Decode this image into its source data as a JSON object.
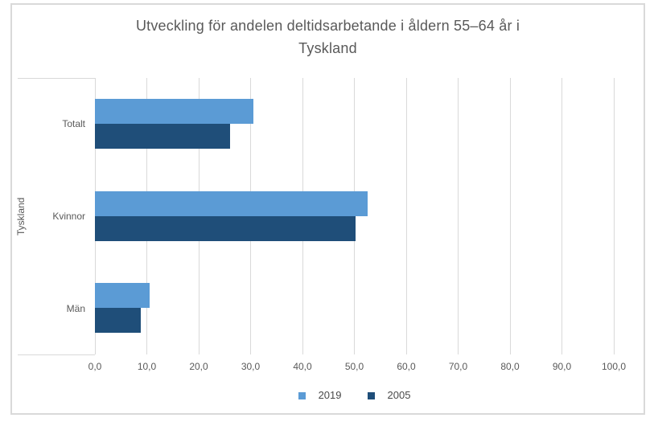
{
  "chart_data": {
    "type": "bar",
    "orientation": "horizontal",
    "title": "Utveckling för andelen deltidsarbetande i åldern 55–64 år i Tyskland",
    "title_lines": [
      "Utveckling för andelen deltidsarbetande i åldern 55–64 år i",
      "Tyskland"
    ],
    "group_label": "Tyskland",
    "categories": [
      "Totalt",
      "Kvinnor",
      "Män"
    ],
    "series": [
      {
        "name": "2019",
        "color": "#5b9bd5",
        "values": [
          30.5,
          52.6,
          10.5
        ]
      },
      {
        "name": "2005",
        "color": "#1f4e79",
        "values": [
          26.1,
          50.3,
          8.9
        ]
      }
    ],
    "x_axis": {
      "min": 0,
      "max": 100,
      "tick_step": 10,
      "tick_labels": [
        "0,0",
        "10,0",
        "20,0",
        "30,0",
        "40,0",
        "50,0",
        "60,0",
        "70,0",
        "80,0",
        "90,0",
        "100,0"
      ]
    },
    "ylabel": "",
    "xlabel": "",
    "xlim": [
      0,
      100
    ],
    "grid": true,
    "legend_position": "bottom",
    "colors": {
      "series_2019": "#5b9bd5",
      "series_2005": "#1f4e79",
      "gridline": "#d9d9d9",
      "chart_border": "#d9d9d9",
      "axis_text": "#595959",
      "title_text": "#595959",
      "legend_text": "#4a4a4a",
      "background": "#ffffff"
    }
  }
}
